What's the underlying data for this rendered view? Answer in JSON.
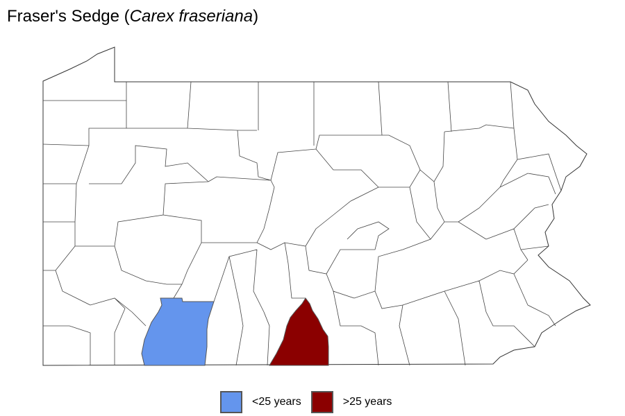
{
  "title": {
    "common_name": "Fraser's Sedge",
    "open": " (",
    "scientific_name": "Carex fraseriana",
    "close": ")"
  },
  "legend": [
    {
      "label": "<25 years",
      "color": "#6495ED"
    },
    {
      "label": ">25 years",
      "color": "#8B0000"
    }
  ],
  "highlighted_counties": [
    {
      "category": "<25 years",
      "color": "#6495ED"
    },
    {
      "category": ">25 years",
      "color": "#8B0000"
    }
  ]
}
